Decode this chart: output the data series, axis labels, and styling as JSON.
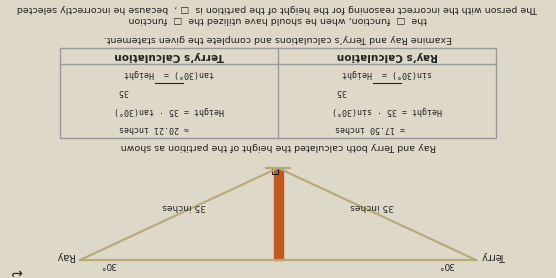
{
  "bg_color": "#ddd8c8",
  "title_diagram": "Ray and Terry both calculated the height of the partition as shown",
  "ray_label": "Ray",
  "terry_label": "Terry",
  "inches_label": "35 inches",
  "angle_label": "30°",
  "table_header_ray": "Ray’s Calculation",
  "table_header_terry": "Terry’s Calculation",
  "statement": "Examine Ray and Terry’s calculations and complete the given statement.",
  "bottom_line1": "The person with the incorrect reasoning for the height of the partition is",
  "bottom_line2": "the",
  "bottom_line2b": "function, when he should have utilized the",
  "bottom_line2c": "function",
  "bottom_line3": "because he incorrectly selected",
  "triangle_color": "#b8a878",
  "partition_color": "#c05820",
  "table_border_color": "#999999",
  "text_color": "#222222",
  "ray_lines": [
    "sin(30°) =  Height",
    "                  35",
    "Height = 35 · sin(30°)",
    "       = 17.50 inches"
  ],
  "terry_lines": [
    "tan(30°) =  Height",
    "                  35",
    "Height = 35 · tan(30°)",
    "      ≈ 20.21 inches"
  ]
}
